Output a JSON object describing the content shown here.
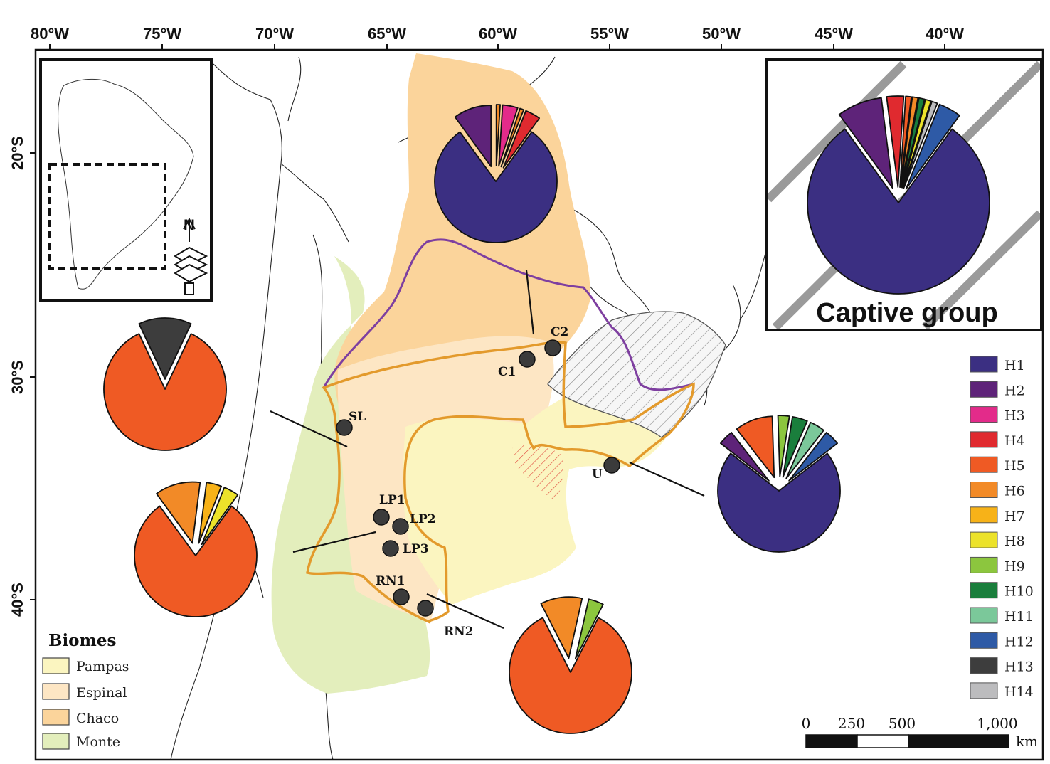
{
  "axes": {
    "lon_labels": [
      "80°W",
      "75°W",
      "70°W",
      "65°W",
      "60°W",
      "55°W",
      "50°W",
      "45°W",
      "40°W"
    ],
    "lat_labels": [
      "20°S",
      "30°S",
      "40°S"
    ]
  },
  "biomes": {
    "title": "Biomes",
    "items": [
      {
        "label": "Pampas",
        "color": "#fbf5c0"
      },
      {
        "label": "Espinal",
        "color": "#fde6c4"
      },
      {
        "label": "Chaco",
        "color": "#fbd49b"
      },
      {
        "label": "Monte",
        "color": "#e3eebc"
      }
    ]
  },
  "haplotypes": [
    {
      "label": "H1",
      "color": "#3b2f82"
    },
    {
      "label": "H2",
      "color": "#5e2379"
    },
    {
      "label": "H3",
      "color": "#e32b8a"
    },
    {
      "label": "H4",
      "color": "#e02a2f"
    },
    {
      "label": "H5",
      "color": "#ef5a24"
    },
    {
      "label": "H6",
      "color": "#f28a27"
    },
    {
      "label": "H7",
      "color": "#f7b218"
    },
    {
      "label": "H8",
      "color": "#ece22a"
    },
    {
      "label": "H9",
      "color": "#8cc63e"
    },
    {
      "label": "H10",
      "color": "#1a7e3c"
    },
    {
      "label": "H11",
      "color": "#7bc89a"
    },
    {
      "label": "H12",
      "color": "#2e5aa6"
    },
    {
      "label": "H13",
      "color": "#3d3d3d"
    },
    {
      "label": "H14",
      "color": "#bcbcbe"
    }
  ],
  "sites": [
    {
      "label": "SL"
    },
    {
      "label": "C1"
    },
    {
      "label": "C2"
    },
    {
      "label": "U"
    },
    {
      "label": "LP1"
    },
    {
      "label": "LP2"
    },
    {
      "label": "LP3"
    },
    {
      "label": "RN1"
    },
    {
      "label": "RN2"
    }
  ],
  "captive": {
    "title": "Captive group"
  },
  "scale": {
    "ticks": [
      "0",
      "250",
      "500",
      "1,000"
    ],
    "unit": "km"
  },
  "pies": [
    {
      "name": "pie-chaco",
      "slices": [
        {
          "h": "H1",
          "v": 80
        },
        {
          "h": "H2",
          "v": 10
        },
        {
          "h": "H6",
          "v": 1
        },
        {
          "h": "H3",
          "v": 4
        },
        {
          "h": "H6",
          "v": 1
        },
        {
          "h": "H4",
          "v": 4
        }
      ]
    },
    {
      "name": "pie-sl",
      "slices": [
        {
          "h": "H5",
          "v": 86
        },
        {
          "h": "H13",
          "v": 14
        }
      ]
    },
    {
      "name": "pie-lp",
      "slices": [
        {
          "h": "H5",
          "v": 80
        },
        {
          "h": "H6",
          "v": 12
        },
        {
          "h": "H7",
          "v": 4
        },
        {
          "h": "H8",
          "v": 4
        }
      ]
    },
    {
      "name": "pie-rn",
      "slices": [
        {
          "h": "H5",
          "v": 85
        },
        {
          "h": "H6",
          "v": 11
        },
        {
          "h": "H9",
          "v": 4
        }
      ]
    },
    {
      "name": "pie-u",
      "slices": [
        {
          "h": "H1",
          "v": 71
        },
        {
          "h": "H2",
          "v": 4
        },
        {
          "h": "H5",
          "v": 10
        },
        {
          "h": "H9",
          "v": 3
        },
        {
          "h": "H10",
          "v": 4
        },
        {
          "h": "H11",
          "v": 4
        },
        {
          "h": "H12",
          "v": 4
        }
      ]
    },
    {
      "name": "pie-captive",
      "slices": [
        {
          "h": "H1",
          "v": 80
        },
        {
          "h": "H2",
          "v": 8
        },
        {
          "h": "H4",
          "v": 3
        },
        {
          "h": "H5",
          "v": 1
        },
        {
          "h": "H6",
          "v": 1
        },
        {
          "h": "H10",
          "v": 1
        },
        {
          "h": "H8",
          "v": 1
        },
        {
          "h": "H14",
          "v": 1
        },
        {
          "h": "H12",
          "v": 4
        }
      ]
    }
  ]
}
